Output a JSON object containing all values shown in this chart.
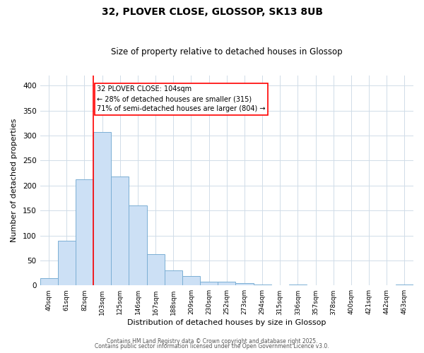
{
  "title": "32, PLOVER CLOSE, GLOSSOP, SK13 8UB",
  "subtitle": "Size of property relative to detached houses in Glossop",
  "xlabel": "Distribution of detached houses by size in Glossop",
  "ylabel": "Number of detached properties",
  "bin_labels": [
    "40sqm",
    "61sqm",
    "82sqm",
    "103sqm",
    "125sqm",
    "146sqm",
    "167sqm",
    "188sqm",
    "209sqm",
    "230sqm",
    "252sqm",
    "273sqm",
    "294sqm",
    "315sqm",
    "336sqm",
    "357sqm",
    "378sqm",
    "400sqm",
    "421sqm",
    "442sqm",
    "463sqm"
  ],
  "bar_values": [
    15,
    90,
    212,
    307,
    218,
    160,
    63,
    30,
    19,
    8,
    7,
    4,
    2,
    0,
    2,
    0,
    0,
    0,
    1,
    0,
    2
  ],
  "bar_color": "#cce0f5",
  "bar_edge_color": "#7bafd4",
  "vline_x_index": 3,
  "vline_color": "red",
  "annotation_text": "32 PLOVER CLOSE: 104sqm\n← 28% of detached houses are smaller (315)\n71% of semi-detached houses are larger (804) →",
  "annotation_box_color": "white",
  "annotation_box_edge": "red",
  "ylim": [
    0,
    420
  ],
  "yticks": [
    0,
    50,
    100,
    150,
    200,
    250,
    300,
    350,
    400
  ],
  "footer1": "Contains HM Land Registry data © Crown copyright and database right 2025.",
  "footer2": "Contains public sector information licensed under the Open Government Licence v3.0.",
  "bg_color": "#ffffff",
  "grid_color": "#d0dce8"
}
